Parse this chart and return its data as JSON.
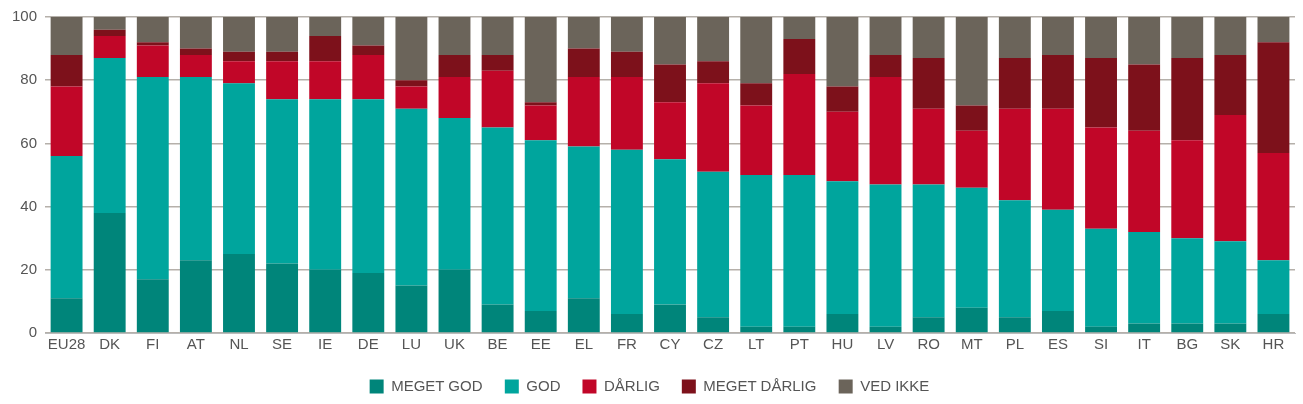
{
  "chart_data": {
    "type": "bar",
    "stacked": true,
    "categories": [
      "EU28",
      "DK",
      "FI",
      "AT",
      "NL",
      "SE",
      "IE",
      "DE",
      "LU",
      "UK",
      "BE",
      "EE",
      "EL",
      "FR",
      "CY",
      "CZ",
      "LT",
      "PT",
      "HU",
      "LV",
      "RO",
      "MT",
      "PL",
      "ES",
      "SI",
      "IT",
      "BG",
      "SK",
      "HR"
    ],
    "series": [
      {
        "name": "MEGET GOD",
        "color": "#00857a",
        "values": [
          11,
          38,
          17,
          23,
          25,
          22,
          20,
          19,
          15,
          20,
          9,
          7,
          11,
          6,
          9,
          5,
          2,
          2,
          6,
          2,
          5,
          8,
          5,
          7,
          2,
          3,
          3,
          3,
          6
        ]
      },
      {
        "name": "GOD",
        "color": "#00a59d",
        "values": [
          45,
          49,
          64,
          58,
          54,
          52,
          54,
          55,
          56,
          48,
          56,
          54,
          48,
          52,
          46,
          46,
          48,
          48,
          42,
          45,
          42,
          38,
          37,
          32,
          31,
          29,
          27,
          26,
          17
        ]
      },
      {
        "name": "DÅRLIG",
        "color": "#c10628",
        "values": [
          22,
          7,
          10,
          7,
          7,
          12,
          12,
          14,
          7,
          13,
          18,
          11,
          22,
          23,
          18,
          28,
          22,
          32,
          22,
          34,
          24,
          18,
          29,
          32,
          32,
          32,
          31,
          40,
          34
        ]
      },
      {
        "name": "MEGET DÅRLIG",
        "color": "#7d111b",
        "values": [
          10,
          2,
          1,
          2,
          3,
          3,
          8,
          3,
          2,
          7,
          5,
          1,
          9,
          8,
          12,
          7,
          7,
          11,
          8,
          7,
          16,
          8,
          16,
          17,
          22,
          21,
          26,
          19,
          35
        ]
      },
      {
        "name": "VED IKKE",
        "color": "#6b645a",
        "values": [
          12,
          4,
          8,
          10,
          11,
          11,
          6,
          9,
          20,
          12,
          12,
          27,
          10,
          11,
          15,
          14,
          21,
          7,
          22,
          12,
          13,
          28,
          13,
          12,
          13,
          15,
          13,
          12,
          8
        ]
      }
    ],
    "ylim": [
      0,
      100
    ],
    "yticks": [
      0,
      20,
      40,
      60,
      80,
      100
    ],
    "grid": "y",
    "legend": "bottom"
  }
}
